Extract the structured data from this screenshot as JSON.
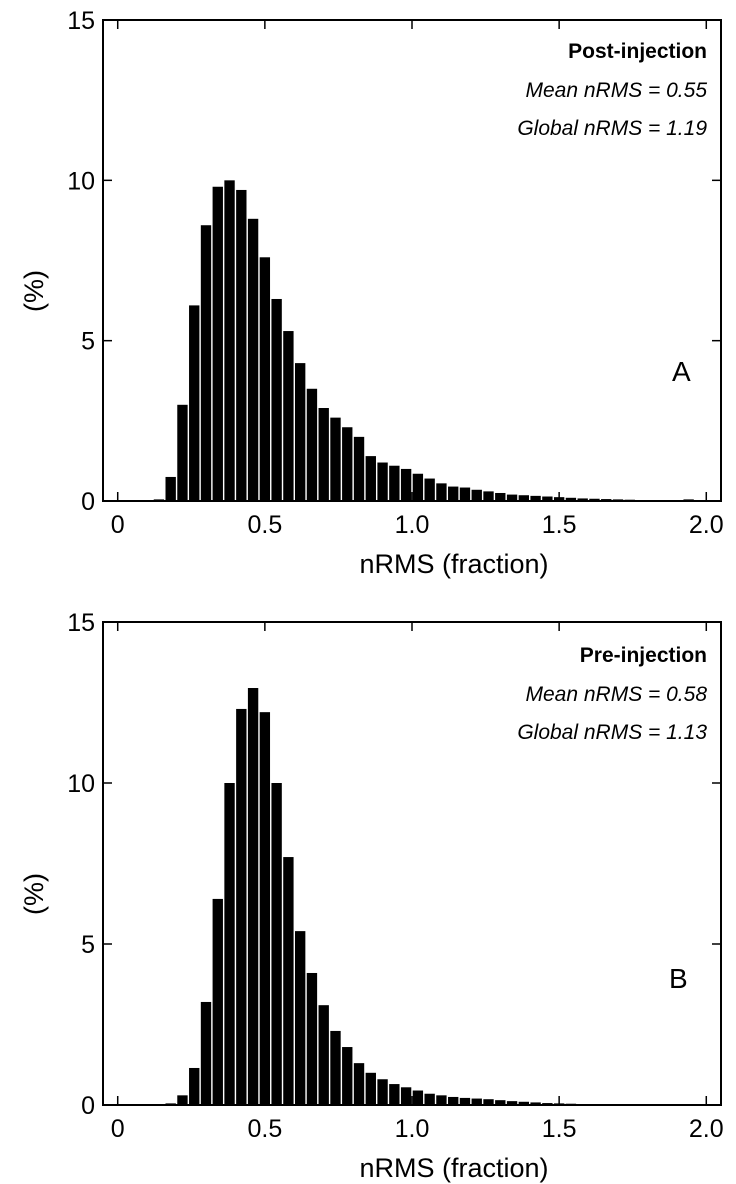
{
  "chart_data": [
    {
      "type": "bar",
      "panel": "A",
      "annotation": {
        "title": "Post-injection",
        "mean": "Mean nRMS = 0.55",
        "global": "Global nRMS = 1.19"
      },
      "xlabel": "nRMS (fraction)",
      "ylabel": "(%)",
      "xlim": [
        -0.05,
        2.05
      ],
      "ylim": [
        0,
        15
      ],
      "xticks": [
        0,
        0.5,
        1.0,
        1.5,
        2.0
      ],
      "xtick_labels": [
        "0",
        "0.5",
        "1.0",
        "1.5",
        "2.0"
      ],
      "yticks": [
        0,
        5,
        10,
        15
      ],
      "ytick_labels": [
        "0",
        "5",
        "10",
        "15"
      ],
      "bin_width": 0.04,
      "bins": [
        0.0,
        0.04,
        0.08,
        0.12,
        0.16,
        0.2,
        0.24,
        0.28,
        0.32,
        0.36,
        0.4,
        0.44,
        0.48,
        0.52,
        0.56,
        0.6,
        0.64,
        0.68,
        0.72,
        0.76,
        0.8,
        0.84,
        0.88,
        0.92,
        0.96,
        1.0,
        1.04,
        1.08,
        1.12,
        1.16,
        1.2,
        1.24,
        1.28,
        1.32,
        1.36,
        1.4,
        1.44,
        1.48,
        1.52,
        1.56,
        1.6,
        1.64,
        1.68,
        1.72,
        1.76,
        1.8,
        1.84,
        1.88,
        1.92,
        1.96
      ],
      "values": [
        0.0,
        0.0,
        0.0,
        0.05,
        0.75,
        3.0,
        6.1,
        8.6,
        9.8,
        10.0,
        9.7,
        8.8,
        7.6,
        6.3,
        5.3,
        4.3,
        3.5,
        2.9,
        2.6,
        2.3,
        2.0,
        1.4,
        1.2,
        1.1,
        1.0,
        0.85,
        0.7,
        0.55,
        0.45,
        0.42,
        0.35,
        0.3,
        0.25,
        0.2,
        0.18,
        0.16,
        0.14,
        0.12,
        0.1,
        0.08,
        0.07,
        0.06,
        0.05,
        0.04,
        0.03,
        0.03,
        0.02,
        0.02,
        0.05,
        0.03
      ]
    },
    {
      "type": "bar",
      "panel": "B",
      "annotation": {
        "title": "Pre-injection",
        "mean": "Mean nRMS = 0.58",
        "global": "Global nRMS = 1.13"
      },
      "xlabel": "nRMS  (fraction)",
      "ylabel": "(%)",
      "xlim": [
        -0.05,
        2.05
      ],
      "ylim": [
        0,
        15
      ],
      "xticks": [
        0,
        0.5,
        1.0,
        1.5,
        2.0
      ],
      "xtick_labels": [
        "0",
        "0.5",
        "1.0",
        "1.5",
        "2.0"
      ],
      "yticks": [
        0,
        5,
        10,
        15
      ],
      "ytick_labels": [
        "0",
        "5",
        "10",
        "15"
      ],
      "bin_width": 0.04,
      "bins": [
        0.0,
        0.04,
        0.08,
        0.12,
        0.16,
        0.2,
        0.24,
        0.28,
        0.32,
        0.36,
        0.4,
        0.44,
        0.48,
        0.52,
        0.56,
        0.6,
        0.64,
        0.68,
        0.72,
        0.76,
        0.8,
        0.84,
        0.88,
        0.92,
        0.96,
        1.0,
        1.04,
        1.08,
        1.12,
        1.16,
        1.2,
        1.24,
        1.28,
        1.32,
        1.36,
        1.4,
        1.44,
        1.48,
        1.52,
        1.56,
        1.6,
        1.64,
        1.68,
        1.72,
        1.76,
        1.8,
        1.84,
        1.88,
        1.92,
        1.96
      ],
      "values": [
        0.0,
        0.0,
        0.0,
        0.0,
        0.05,
        0.3,
        1.15,
        3.2,
        6.4,
        10.0,
        12.3,
        12.95,
        12.2,
        10.0,
        7.7,
        5.4,
        4.1,
        3.1,
        2.3,
        1.8,
        1.3,
        1.0,
        0.8,
        0.65,
        0.55,
        0.45,
        0.35,
        0.3,
        0.25,
        0.22,
        0.2,
        0.18,
        0.15,
        0.12,
        0.1,
        0.08,
        0.06,
        0.05,
        0.04,
        0.03,
        0.03,
        0.02,
        0.02,
        0.01,
        0.01,
        0.01,
        0.0,
        0.0,
        0.0,
        0.0
      ]
    }
  ]
}
